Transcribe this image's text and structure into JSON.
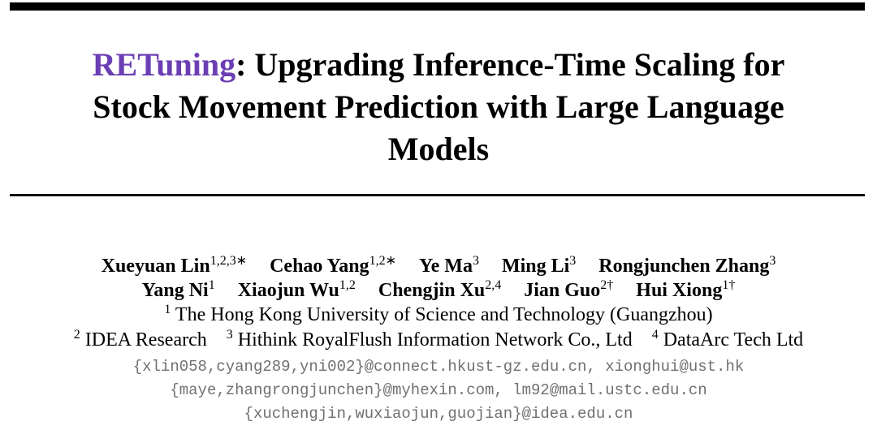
{
  "title": {
    "highlight": "RETuning",
    "lines": [
      ": Upgrading Inference-Time Scaling for",
      "Stock Movement Prediction with Large Language",
      "Models"
    ]
  },
  "authors": [
    [
      {
        "name": "Xueyuan Lin",
        "affil": "1,2,3",
        "mark": "∗"
      },
      {
        "name": "Cehao Yang",
        "affil": "1,2",
        "mark": "∗"
      },
      {
        "name": "Ye Ma",
        "affil": "3"
      },
      {
        "name": "Ming Li",
        "affil": "3"
      },
      {
        "name": "Rongjunchen Zhang",
        "affil": "3"
      }
    ],
    [
      {
        "name": "Yang Ni",
        "affil": "1"
      },
      {
        "name": "Xiaojun Wu",
        "affil": "1,2"
      },
      {
        "name": "Chengjin Xu",
        "affil": "2,4"
      },
      {
        "name": "Jian Guo",
        "affil": "2",
        "mark": "†"
      },
      {
        "name": "Hui Xiong",
        "affil": "1",
        "mark": "†"
      }
    ]
  ],
  "affiliations": [
    [
      {
        "num": "1",
        "name": "The Hong Kong University of Science and Technology (Guangzhou)"
      }
    ],
    [
      {
        "num": "2",
        "name": "IDEA Research"
      },
      {
        "num": "3",
        "name": "Hithink RoyalFlush Information Network Co., Ltd"
      },
      {
        "num": "4",
        "name": "DataArc Tech Ltd"
      }
    ]
  ],
  "emails": [
    "{xlin058,cyang289,yni002}@connect.hkust-gz.edu.cn, xionghui@ust.hk",
    "{maye,zhangrongjunchen}@myhexin.com, lm92@mail.ustc.edu.cn",
    "{xuchengjin,wuxiaojun,guojian}@idea.edu.cn"
  ]
}
